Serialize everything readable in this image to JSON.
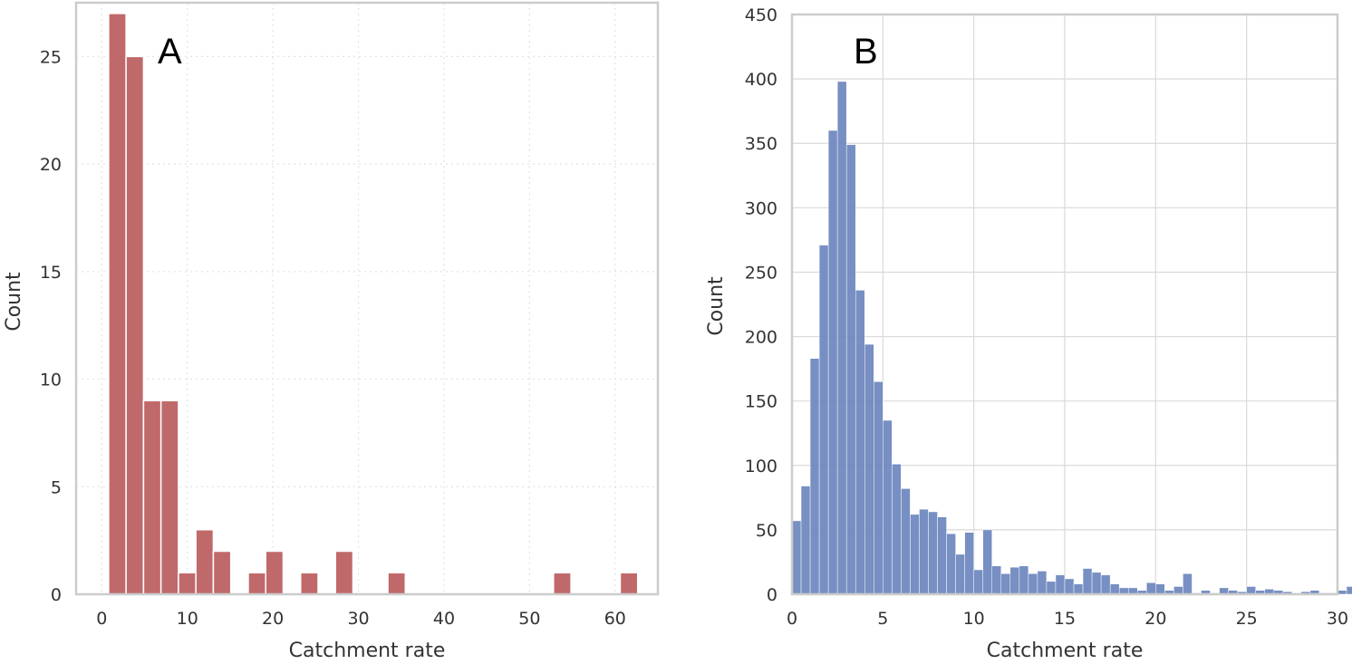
{
  "chart_data": [
    {
      "type": "bar",
      "panel_label": "A",
      "xlabel": "Catchment rate",
      "ylabel": "Count",
      "xlim": [
        -3,
        65
      ],
      "ylim": [
        0,
        27.5
      ],
      "xticks": [
        0,
        10,
        20,
        30,
        40,
        50,
        60
      ],
      "yticks": [
        0,
        5,
        10,
        15,
        20,
        25
      ],
      "grid": "dotted",
      "bar_color": "#c0696a",
      "bin_width": 2.04,
      "bins": [
        {
          "x0": 0.8,
          "count": 27
        },
        {
          "x0": 2.84,
          "count": 25
        },
        {
          "x0": 4.88,
          "count": 9
        },
        {
          "x0": 6.92,
          "count": 9
        },
        {
          "x0": 8.96,
          "count": 1
        },
        {
          "x0": 11.0,
          "count": 3
        },
        {
          "x0": 13.04,
          "count": 2
        },
        {
          "x0": 17.12,
          "count": 1
        },
        {
          "x0": 19.16,
          "count": 2
        },
        {
          "x0": 23.24,
          "count": 1
        },
        {
          "x0": 27.32,
          "count": 2
        },
        {
          "x0": 33.44,
          "count": 1
        },
        {
          "x0": 52.8,
          "count": 1
        },
        {
          "x0": 60.6,
          "count": 1
        }
      ]
    },
    {
      "type": "bar",
      "panel_label": "B",
      "xlabel": "Catchment rate",
      "ylabel": "Count",
      "xlim": [
        0,
        30
      ],
      "ylim": [
        0,
        450
      ],
      "xticks": [
        0,
        5,
        10,
        15,
        20,
        25,
        30
      ],
      "yticks": [
        0,
        50,
        100,
        150,
        200,
        250,
        300,
        350,
        400,
        450
      ],
      "grid": "solid",
      "bar_color": "#6b85bd",
      "bin_start": 0,
      "bin_width": 0.5,
      "counts": [
        57,
        84,
        183,
        271,
        360,
        398,
        349,
        236,
        194,
        165,
        135,
        101,
        82,
        62,
        66,
        64,
        60,
        47,
        31,
        48,
        19,
        50,
        22,
        16,
        21,
        22,
        16,
        18,
        10,
        15,
        12,
        8,
        20,
        17,
        15,
        8,
        5,
        5,
        3,
        9,
        8,
        3,
        6,
        16,
        1,
        3,
        1,
        5,
        3,
        2,
        6,
        3,
        4,
        3,
        2,
        1,
        2,
        3,
        1,
        1,
        3,
        6
      ]
    }
  ]
}
